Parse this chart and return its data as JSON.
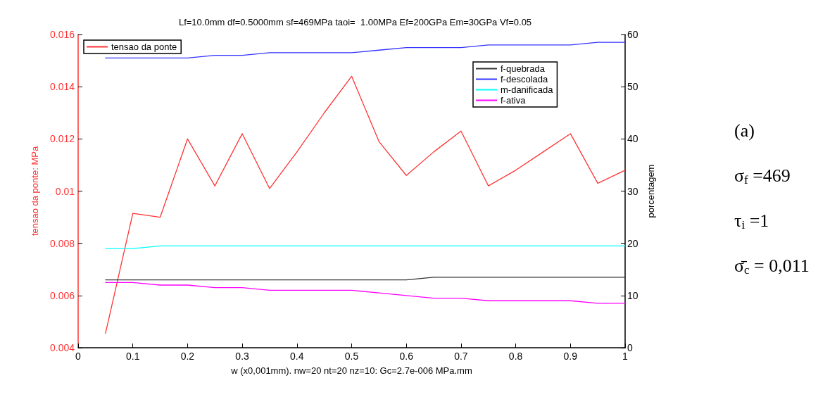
{
  "chart_data": {
    "type": "line",
    "title": "Lf=10.0mm df=0.5000mm sf=469MPa taoi=  1.00MPa Ef=200GPa Em=30GPa Vf=0.05",
    "xlabel": "w (x0,001mm). nw=20 nt=20 nz=10: Gc=2.7e-006 MPa.mm",
    "ylabel": "tensao da ponte: MPa",
    "y2label": "porcentagem",
    "x": [
      0.05,
      0.1,
      0.15,
      0.2,
      0.25,
      0.3,
      0.35,
      0.4,
      0.45,
      0.5,
      0.55,
      0.6,
      0.65,
      0.7,
      0.75,
      0.8,
      0.85,
      0.9,
      0.95,
      1
    ],
    "series": [
      {
        "name": "tensao da ponte",
        "color": "#ff3333",
        "values": [
          0.00455,
          0.00915,
          0.009,
          0.012,
          0.0102,
          0.0122,
          0.0101,
          0.0115,
          0.013,
          0.0144,
          0.0119,
          0.0106,
          0.0115,
          0.0123,
          0.0102,
          0.0108,
          0.0115,
          0.0122,
          0.0103,
          0.0108
        ]
      },
      {
        "name": "f-quebrada",
        "color": "#333333",
        "axis": "y2",
        "values": [
          13,
          13,
          13,
          13,
          13,
          13,
          13,
          13,
          13,
          13,
          13,
          13,
          13.5,
          13.5,
          13.5,
          13.5,
          13.5,
          13.5,
          13.5,
          13.5
        ]
      },
      {
        "name": "f-descolada",
        "color": "#3333ff",
        "axis": "y2",
        "values": [
          55.5,
          55.5,
          55.5,
          55.5,
          56,
          56,
          56.5,
          56.5,
          56.5,
          56.5,
          57,
          57.5,
          57.5,
          57.5,
          58,
          58,
          58,
          58,
          58.5,
          58.5
        ]
      },
      {
        "name": "m-danificada",
        "color": "#00ffff",
        "axis": "y2",
        "values": [
          19,
          19,
          19.5,
          19.5,
          19.5,
          19.5,
          19.5,
          19.5,
          19.5,
          19.5,
          19.5,
          19.5,
          19.5,
          19.5,
          19.5,
          19.5,
          19.5,
          19.5,
          19.5,
          19.5
        ]
      },
      {
        "name": "f-ativa",
        "color": "#ff00ff",
        "axis": "y2",
        "values": [
          12.5,
          12.5,
          12,
          12,
          11.5,
          11.5,
          11,
          11,
          11,
          11,
          10.5,
          10,
          9.5,
          9.5,
          9,
          9,
          9,
          9,
          8.5,
          8.5
        ]
      }
    ],
    "xlim": [
      0,
      1
    ],
    "xticks": [
      0,
      0.1,
      0.2,
      0.3,
      0.4,
      0.5,
      0.6,
      0.7,
      0.8,
      0.9,
      1
    ],
    "ylim": [
      0.004,
      0.016
    ],
    "yticks": [
      0.004,
      0.006,
      0.008,
      0.01,
      0.012,
      0.014,
      0.016
    ],
    "y2lim": [
      0,
      60
    ],
    "y2ticks": [
      0,
      10,
      20,
      30,
      40,
      50,
      60
    ],
    "annotations": [
      "(a)",
      "σ$_{f}$ =469",
      "τ$_{i}$ =1",
      "σ̄$_{c}$ = 0,011"
    ],
    "legend": "top left",
    "grid": false,
    "marker": "none",
    "line_style": "solid"
  }
}
